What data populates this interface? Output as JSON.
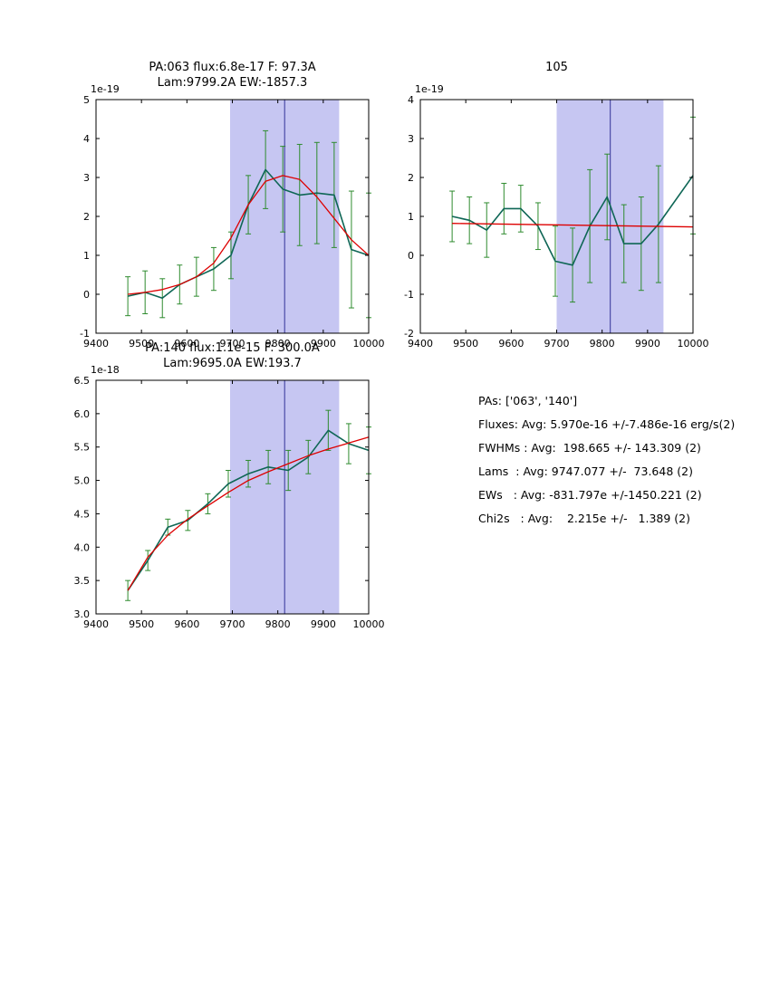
{
  "colors": {
    "band": "#c6c6f2",
    "vline": "#333399",
    "data": "#0e6655",
    "error": "#2e8b2e",
    "fit": "#dd0000",
    "axis": "#000000"
  },
  "stats": {
    "lines": [
      "PAs: ['063', '140']",
      "Fluxes: Avg: 5.970e-16 +/-7.486e-16 erg/s(2)",
      "FWHMs : Avg:  198.665 +/- 143.309 (2)",
      "Lams  : Avg: 9747.077 +/-  73.648 (2)",
      "EWs   : Avg: -831.797e +/-1450.221 (2)",
      "Chi2s   : Avg:    2.215e +/-   1.389 (2)"
    ]
  },
  "chart_data": [
    {
      "type": "line",
      "title_line1": "PA:063 flux:6.8e-17 F: 97.3A",
      "title_line2": "Lam:9799.2A EW:-1857.3",
      "offset_label": "1e-19",
      "xlim": [
        9400,
        10000
      ],
      "ylim": [
        -1,
        5
      ],
      "xticks": [
        9400,
        9500,
        9600,
        9700,
        9800,
        9900,
        10000
      ],
      "yticks": [
        -1,
        0,
        1,
        2,
        3,
        4,
        5
      ],
      "ytick_labels": [
        "-1",
        "0",
        "1",
        "2",
        "3",
        "4",
        "5"
      ],
      "band": [
        9695,
        9935
      ],
      "vline": 9815,
      "series": {
        "data": {
          "x": [
            9470,
            9508,
            9546,
            9584,
            9621,
            9659,
            9697,
            9735,
            9773,
            9811,
            9848,
            9886,
            9924,
            9962,
            10000
          ],
          "y": [
            -0.05,
            0.05,
            -0.1,
            0.25,
            0.45,
            0.65,
            1.0,
            2.3,
            3.2,
            2.7,
            2.55,
            2.6,
            2.55,
            1.15,
            1.0
          ],
          "yerr": [
            0.5,
            0.55,
            0.5,
            0.5,
            0.5,
            0.55,
            0.6,
            0.75,
            1.0,
            1.1,
            1.3,
            1.3,
            1.35,
            1.5,
            1.6
          ]
        },
        "fit": {
          "x": [
            9470,
            9508,
            9546,
            9584,
            9621,
            9659,
            9697,
            9735,
            9773,
            9811,
            9848,
            9886,
            9924,
            9962,
            10000
          ],
          "y": [
            0.0,
            0.05,
            0.12,
            0.25,
            0.45,
            0.8,
            1.45,
            2.3,
            2.9,
            3.05,
            2.95,
            2.5,
            1.95,
            1.4,
            1.0
          ]
        }
      }
    },
    {
      "type": "line",
      "title_line1": "",
      "title_line2": "105",
      "offset_label": "1e-19",
      "xlim": [
        9400,
        10000
      ],
      "ylim": [
        -2,
        4
      ],
      "xticks": [
        9400,
        9500,
        9600,
        9700,
        9800,
        9900,
        10000
      ],
      "yticks": [
        -2,
        -1,
        0,
        1,
        2,
        3,
        4
      ],
      "ytick_labels": [
        "-2",
        "-1",
        "0",
        "1",
        "2",
        "3",
        "4"
      ],
      "band": [
        9700,
        9935
      ],
      "vline": 9818,
      "series": {
        "data": {
          "x": [
            9470,
            9508,
            9546,
            9584,
            9621,
            9659,
            9697,
            9735,
            9773,
            9811,
            9848,
            9886,
            9924,
            10000
          ],
          "y": [
            1.0,
            0.9,
            0.65,
            1.2,
            1.2,
            0.75,
            -0.15,
            -0.25,
            0.75,
            1.5,
            0.3,
            0.3,
            0.8,
            2.05
          ],
          "yerr": [
            0.65,
            0.6,
            0.7,
            0.65,
            0.6,
            0.6,
            0.9,
            0.95,
            1.45,
            1.1,
            1.0,
            1.2,
            1.5,
            1.5
          ]
        },
        "fit": {
          "x": [
            9470,
            10000
          ],
          "y": [
            0.82,
            0.73
          ]
        }
      }
    },
    {
      "type": "line",
      "title_line1": "PA:140 flux:1.1e-15 F: 300.0A",
      "title_line2": "Lam:9695.0A EW:193.7",
      "offset_label": "1e-18",
      "xlim": [
        9400,
        10000
      ],
      "ylim": [
        3.0,
        6.5
      ],
      "xticks": [
        9400,
        9500,
        9600,
        9700,
        9800,
        9900,
        10000
      ],
      "yticks": [
        3.0,
        3.5,
        4.0,
        4.5,
        5.0,
        5.5,
        6.0,
        6.5
      ],
      "ytick_labels": [
        "3.0",
        "3.5",
        "4.0",
        "4.5",
        "5.0",
        "5.5",
        "6.0",
        "6.5"
      ],
      "band": [
        9695,
        9935
      ],
      "vline": 9815,
      "series": {
        "data": {
          "x": [
            9470,
            9514,
            9558,
            9602,
            9646,
            9691,
            9735,
            9779,
            9823,
            9867,
            9911,
            9956,
            10000
          ],
          "y": [
            3.35,
            3.8,
            4.3,
            4.4,
            4.65,
            4.95,
            5.1,
            5.2,
            5.15,
            5.35,
            5.75,
            5.55,
            5.45
          ],
          "yerr": [
            0.15,
            0.15,
            0.12,
            0.15,
            0.15,
            0.2,
            0.2,
            0.25,
            0.3,
            0.25,
            0.3,
            0.3,
            0.35
          ]
        },
        "fit": {
          "x": [
            9470,
            9514,
            9558,
            9602,
            9646,
            9691,
            9735,
            9779,
            9823,
            9867,
            9911,
            9956,
            10000
          ],
          "y": [
            3.35,
            3.85,
            4.18,
            4.42,
            4.62,
            4.82,
            5.0,
            5.13,
            5.25,
            5.37,
            5.47,
            5.56,
            5.65
          ]
        }
      }
    }
  ]
}
